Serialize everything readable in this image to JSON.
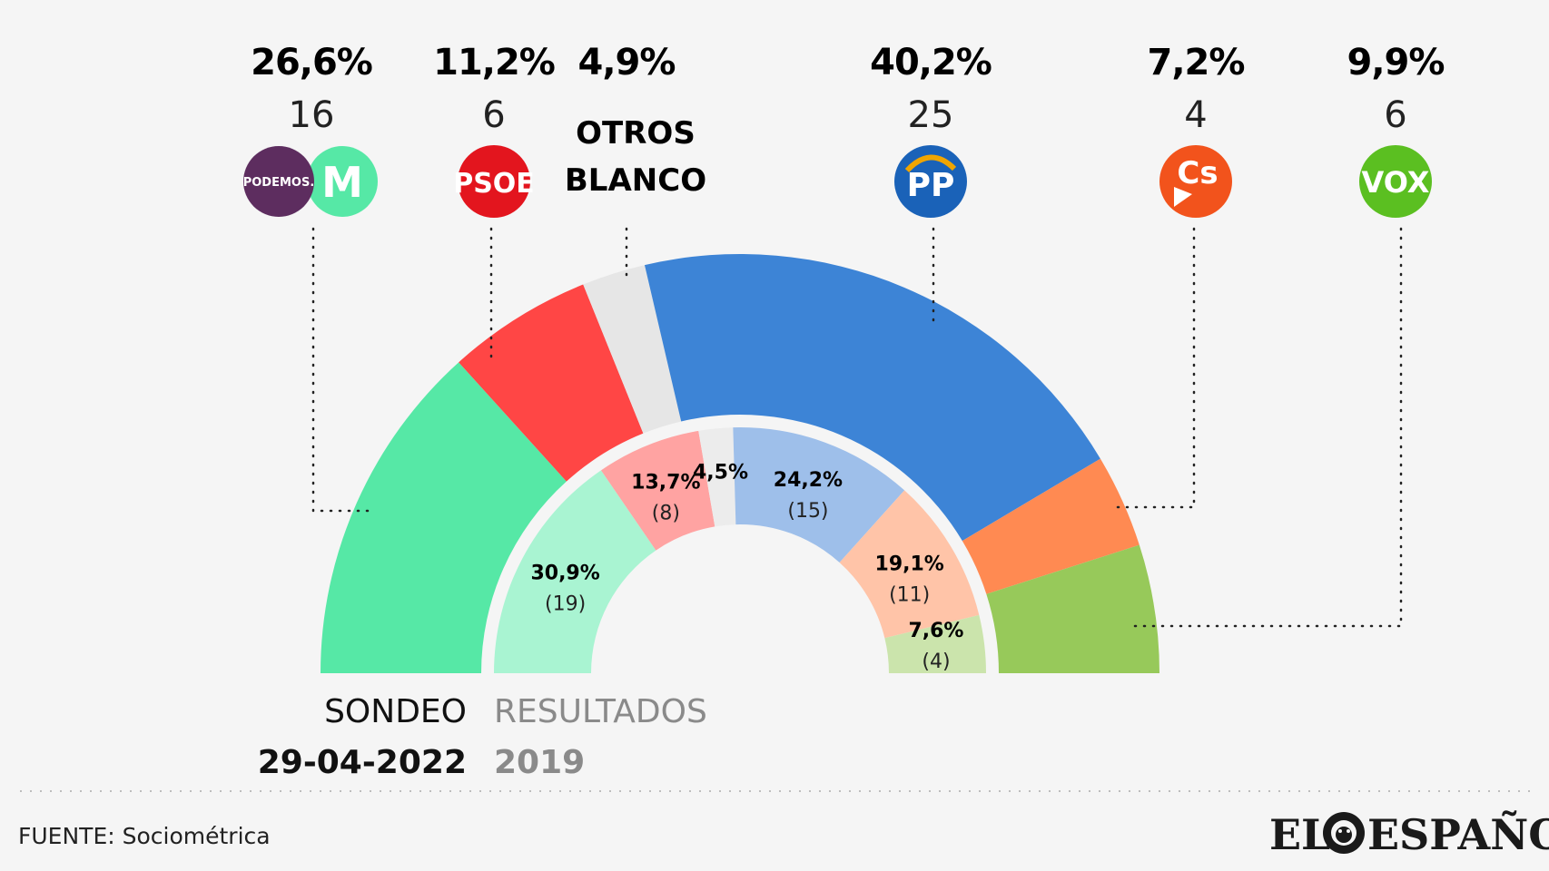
{
  "chart_data": {
    "type": "pie",
    "subtype": "half-donut-parliament",
    "source": "FUENTE: Sociométrica",
    "brand": {
      "left": "EL",
      "right": "ESPAÑOL"
    },
    "legend": {
      "outer_label": "SONDEO",
      "outer_date": "29-04-2022",
      "inner_label": "RESULTADOS",
      "inner_date": "2019"
    },
    "outer_ring": [
      {
        "party": "Podemos / Más Madrid",
        "pct": "26,6%",
        "value": 26.6,
        "seats": "16",
        "color": "#56e8a6",
        "logos": [
          "podemos",
          "mas-madrid"
        ]
      },
      {
        "party": "PSOE",
        "pct": "11,2%",
        "value": 11.2,
        "seats": "6",
        "color": "#ff4645",
        "logos": [
          "psoe"
        ]
      },
      {
        "party": "OTROS BLANCO",
        "pct": "4,9%",
        "value": 4.9,
        "seats": "",
        "color": "#e6e6e6",
        "label_lines": [
          "OTROS",
          "BLANCO"
        ]
      },
      {
        "party": "PP",
        "pct": "40,2%",
        "value": 40.2,
        "seats": "25",
        "color": "#3d84d6",
        "logos": [
          "pp"
        ]
      },
      {
        "party": "Cs",
        "pct": "7,2%",
        "value": 7.2,
        "seats": "4",
        "color": "#ff8a52",
        "logos": [
          "cs"
        ]
      },
      {
        "party": "VOX",
        "pct": "9,9%",
        "value": 9.9,
        "seats": "6",
        "color": "#97c95a",
        "logos": [
          "vox"
        ]
      }
    ],
    "inner_ring": [
      {
        "party": "Podemos / Más Madrid",
        "pct": "30,9%",
        "value": 30.9,
        "seats": "(19)",
        "color": "#a9f4d2"
      },
      {
        "party": "PSOE",
        "pct": "13,7%",
        "value": 13.7,
        "seats": "(8)",
        "color": "#ffa3a2"
      },
      {
        "party": "Otros",
        "pct": "4,5%",
        "value": 4.5,
        "seats": "",
        "color": "#ececec"
      },
      {
        "party": "PP",
        "pct": "24,2%",
        "value": 24.2,
        "seats": "(15)",
        "color": "#9ebfea"
      },
      {
        "party": "Cs",
        "pct": "19,1%",
        "value": 19.1,
        "seats": "(11)",
        "color": "#ffc4a8"
      },
      {
        "party": "VOX",
        "pct": "7,6%",
        "value": 7.6,
        "seats": "(4)",
        "color": "#cbe4ac"
      }
    ],
    "logo_text": {
      "podemos": "PODEMOS.",
      "mas-madrid": "M",
      "psoe": "PSOE",
      "pp": "PP",
      "cs": "Cs",
      "vox": "VOX"
    },
    "logo_colors": {
      "podemos": "#5d2d5f",
      "mas-madrid": "#56e8a6",
      "mas-madrid-text": "#1f5f3f",
      "psoe": "#e3151e",
      "pp": "#1a62b8",
      "pp-accent": "#f0a500",
      "cs": "#f2531c",
      "vox": "#5bbf21"
    }
  }
}
